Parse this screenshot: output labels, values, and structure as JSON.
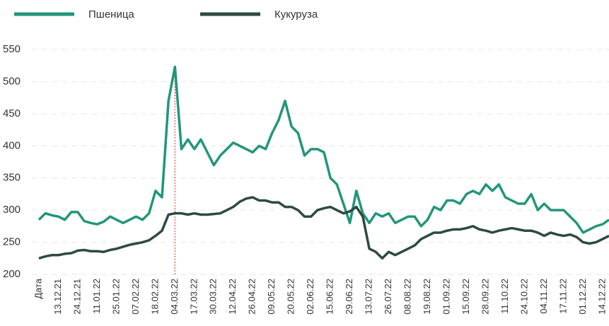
{
  "chart_data": {
    "type": "line",
    "categories": [
      "Дата",
      null,
      null,
      "13.12.21",
      null,
      null,
      "24.12.21",
      null,
      null,
      "11.01.22",
      null,
      null,
      "25.01.22",
      null,
      null,
      "07.02.22",
      null,
      null,
      "18.02.22",
      null,
      null,
      "04.03.22",
      null,
      null,
      "17.03.22",
      null,
      null,
      "30.03.22",
      null,
      null,
      "12.04.22",
      null,
      null,
      "26.04.22",
      null,
      null,
      "09.05.22",
      null,
      null,
      "20.05.22",
      null,
      null,
      "02.06.22",
      null,
      null,
      "15.06.22",
      null,
      null,
      "29.06.22",
      null,
      null,
      "13.07.22",
      null,
      null,
      "26.07.22",
      null,
      null,
      "08.08.22",
      null,
      null,
      "19.08.22",
      null,
      null,
      "01.09.22",
      null,
      null,
      "15.09.22",
      null,
      null,
      "28.09.22",
      null,
      null,
      "11.10.22",
      null,
      null,
      "24.10.22",
      null,
      null,
      "04.11.22",
      null,
      null,
      "17.11.22",
      null,
      null,
      "01.12.22",
      null,
      null,
      "14.12.22",
      null
    ],
    "series": [
      {
        "name": "Пшеница",
        "color": "#22967c",
        "values": [
          285,
          295,
          292,
          290,
          285,
          297,
          297,
          283,
          280,
          278,
          282,
          290,
          285,
          280,
          285,
          290,
          285,
          295,
          330,
          320,
          470,
          523,
          395,
          410,
          395,
          410,
          390,
          370,
          385,
          395,
          405,
          400,
          395,
          390,
          400,
          395,
          420,
          440,
          470,
          430,
          420,
          385,
          395,
          395,
          390,
          350,
          340,
          310,
          280,
          330,
          295,
          280,
          295,
          290,
          295,
          280,
          285,
          290,
          290,
          275,
          285,
          305,
          300,
          315,
          315,
          310,
          325,
          330,
          325,
          340,
          330,
          340,
          320,
          315,
          310,
          310,
          325,
          300,
          310,
          300,
          300,
          300,
          290,
          280,
          265,
          270,
          275,
          278,
          285
        ]
      },
      {
        "name": "Кукуруза",
        "color": "#2d4a40",
        "values": [
          225,
          228,
          230,
          230,
          232,
          233,
          237,
          238,
          236,
          236,
          235,
          238,
          240,
          243,
          246,
          248,
          250,
          253,
          260,
          268,
          293,
          295,
          295,
          293,
          295,
          293,
          293,
          294,
          295,
          300,
          305,
          313,
          318,
          320,
          315,
          315,
          312,
          312,
          305,
          305,
          300,
          290,
          290,
          300,
          303,
          305,
          300,
          295,
          298,
          305,
          290,
          240,
          235,
          225,
          235,
          230,
          235,
          240,
          245,
          255,
          260,
          265,
          265,
          268,
          270,
          270,
          272,
          275,
          270,
          268,
          265,
          268,
          270,
          272,
          270,
          268,
          268,
          265,
          260,
          265,
          262,
          260,
          262,
          258,
          250,
          248,
          250,
          255,
          260
        ]
      }
    ],
    "ylim": [
      200,
      550
    ],
    "yticks": [
      200,
      250,
      300,
      350,
      400,
      450,
      500,
      550
    ],
    "grid": true
  }
}
